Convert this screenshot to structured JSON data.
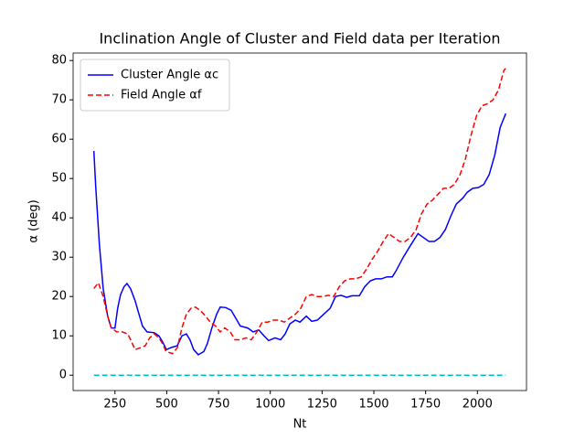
{
  "chart_data": {
    "type": "line",
    "title": "Inclination Angle of Cluster and Field data per Iteration",
    "xlabel": "Nt",
    "ylabel": "α (deg)",
    "xlim": [
      48,
      2237
    ],
    "xticks": [
      250,
      500,
      750,
      1000,
      1250,
      1500,
      1750,
      2000
    ],
    "ylim": [
      -3.9,
      81.9
    ],
    "yticks": [
      0,
      10,
      20,
      30,
      40,
      50,
      60,
      70,
      80
    ],
    "legend": "upper left",
    "series": [
      {
        "name": "Cluster Angle αc",
        "color": "#0000ff",
        "dash": "solid",
        "x": [
          148,
          157,
          175,
          193,
          215,
          232,
          250,
          263,
          277,
          294,
          308,
          325,
          347,
          369,
          383,
          405,
          440,
          462,
          480,
          498,
          520,
          551,
          573,
          595,
          612,
          630,
          652,
          679,
          696,
          718,
          741,
          758,
          785,
          811,
          833,
          855,
          891,
          917,
          944,
          970,
          992,
          1023,
          1050,
          1072,
          1094,
          1121,
          1143,
          1174,
          1200,
          1227,
          1258,
          1289,
          1315,
          1342,
          1368,
          1395,
          1430,
          1456,
          1483,
          1509,
          1536,
          1563,
          1589,
          1607,
          1642,
          1677,
          1713,
          1739,
          1766,
          1792,
          1819,
          1845,
          1872,
          1898,
          1929,
          1951,
          1978,
          2004,
          2031,
          2057,
          2084,
          2110,
          2137
        ],
        "values": [
          57,
          48,
          33,
          22,
          15,
          12,
          12,
          17,
          20.5,
          22.5,
          23.3,
          22,
          19,
          15,
          12.5,
          11,
          10.8,
          10,
          8.5,
          6.5,
          7,
          7.5,
          10,
          10.5,
          9,
          6.5,
          5.2,
          6,
          8,
          12,
          15.5,
          17.3,
          17.2,
          16.5,
          14.5,
          12.5,
          12,
          11,
          11.5,
          10,
          8.8,
          9.5,
          9,
          10.5,
          13,
          14,
          13.5,
          15,
          13.7,
          14,
          15.5,
          17,
          20,
          20.3,
          19.8,
          20.2,
          20.2,
          22.5,
          24,
          24.5,
          24.5,
          25,
          25,
          26.5,
          30,
          33,
          36,
          35,
          34,
          34,
          35,
          37,
          40.5,
          43.5,
          45,
          46.5,
          47.5,
          47.7,
          48.5,
          51,
          56,
          63,
          66.5
        ]
      },
      {
        "name": "Field Angle αf",
        "color": "#ff0000",
        "dash": "dashed",
        "x": [
          148,
          170,
          193,
          215,
          232,
          259,
          285,
          312,
          330,
          347,
          374,
          396,
          418,
          440,
          462,
          480,
          497,
          528,
          551,
          573,
          595,
          617,
          639,
          661,
          688,
          710,
          736,
          758,
          780,
          807,
          829,
          855,
          882,
          908,
          935,
          961,
          988,
          1015,
          1041,
          1068,
          1094,
          1121,
          1147,
          1174,
          1200,
          1227,
          1253,
          1280,
          1306,
          1333,
          1359,
          1386,
          1412,
          1439,
          1465,
          1492,
          1518,
          1545,
          1571,
          1598,
          1624,
          1651,
          1677,
          1704,
          1730,
          1757,
          1783,
          1810,
          1836,
          1863,
          1889,
          1916,
          1942,
          1969,
          1996,
          2022,
          2049,
          2075,
          2102,
          2128,
          2137
        ],
        "values": [
          22,
          23.5,
          20,
          15,
          12,
          11,
          11,
          10.5,
          8.5,
          6.5,
          7,
          7.5,
          9.5,
          10.5,
          9.5,
          8,
          6,
          5.5,
          7,
          12,
          15.5,
          17,
          17.3,
          16.5,
          15,
          13.5,
          12.5,
          11,
          12,
          11,
          9,
          9,
          9.5,
          9,
          11,
          13.5,
          13.5,
          14,
          14,
          13.5,
          14.5,
          15.5,
          17,
          20,
          20.5,
          20,
          20,
          20.3,
          20,
          22.5,
          24,
          24.5,
          24.5,
          25,
          27,
          29.5,
          31.5,
          34,
          36,
          35,
          34,
          34,
          35,
          37,
          41,
          43.5,
          44.5,
          46,
          47.5,
          47.5,
          48.5,
          51,
          55,
          61,
          66,
          68.5,
          69,
          70,
          72.5,
          77.5,
          78
        ]
      },
      {
        "color": "#00bfbf",
        "dash": "dashed",
        "x": [
          148,
          2137
        ],
        "values": [
          0,
          0
        ]
      }
    ]
  }
}
